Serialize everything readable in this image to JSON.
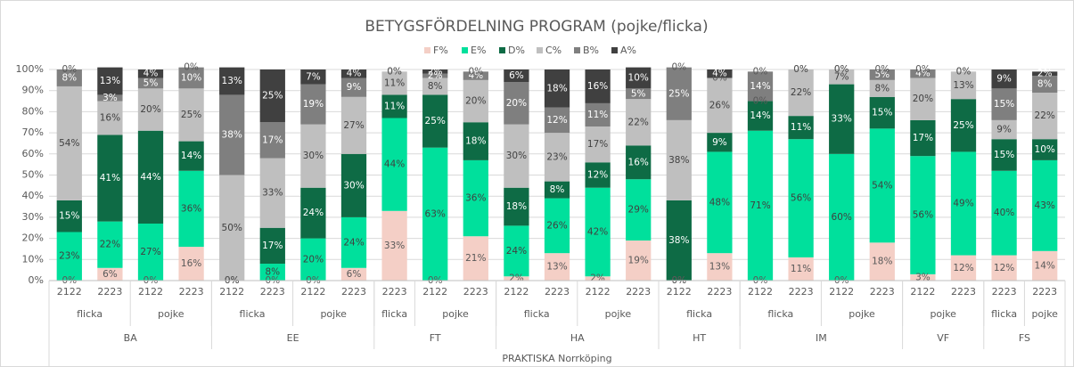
{
  "chart_data": {
    "type": "stacked_bar",
    "title": "BETYGSFÖRDELNING PROGRAM (pojke/flicka)",
    "top_category": "PRAKTISKA Norrköping",
    "groups": [
      {
        "name": "BA",
        "subgroups": [
          {
            "name": "flicka",
            "categories": [
              "2122",
              "2223"
            ]
          },
          {
            "name": "pojke",
            "categories": [
              "2122",
              "2223"
            ]
          }
        ]
      },
      {
        "name": "EE",
        "subgroups": [
          {
            "name": "flicka",
            "categories": [
              "2122",
              "2223"
            ]
          },
          {
            "name": "pojke",
            "categories": [
              "2122",
              "2223"
            ]
          }
        ]
      },
      {
        "name": "FT",
        "subgroups": [
          {
            "name": "flicka",
            "categories": [
              "2223"
            ]
          },
          {
            "name": "pojke",
            "categories": [
              "2122",
              "2223"
            ]
          }
        ]
      },
      {
        "name": "HA",
        "subgroups": [
          {
            "name": "flicka",
            "categories": [
              "2122",
              "2223"
            ]
          },
          {
            "name": "pojke",
            "categories": [
              "2122",
              "2223"
            ]
          }
        ]
      },
      {
        "name": "HT",
        "subgroups": [
          {
            "name": "flicka",
            "categories": [
              "2122",
              "2223"
            ]
          }
        ]
      },
      {
        "name": "IM",
        "subgroups": [
          {
            "name": "flicka",
            "categories": [
              "2122",
              "2223"
            ]
          },
          {
            "name": "pojke",
            "categories": [
              "2122",
              "2223"
            ]
          }
        ]
      },
      {
        "name": "VF",
        "subgroups": [
          {
            "name": "pojke",
            "categories": [
              "2122",
              "2223"
            ]
          }
        ]
      },
      {
        "name": "FS",
        "subgroups": [
          {
            "name": "flicka",
            "categories": [
              "2223"
            ]
          },
          {
            "name": "pojke",
            "categories": [
              "2223"
            ]
          }
        ]
      }
    ],
    "series": [
      {
        "name": "F%",
        "color": "#f4cfc6",
        "label_color": "#595959",
        "values": [
          0,
          6,
          0,
          16,
          0,
          0,
          0,
          6,
          33,
          0,
          21,
          2,
          13,
          2,
          19,
          0,
          13,
          0,
          11,
          0,
          18,
          3,
          12,
          12,
          14
        ],
        "value_labels": [
          "0%",
          "6%",
          "0%",
          "16%",
          "0%",
          "0%",
          "0%",
          "6%",
          "33%",
          "0%",
          "21%",
          "2%",
          "13%",
          "2%",
          "19%",
          "0%",
          "13%",
          "0%",
          "11%",
          "0%",
          "18%",
          "3%",
          "12%",
          "12%",
          "14%"
        ]
      },
      {
        "name": "E%",
        "color": "#00e09c",
        "label_color": "#404040",
        "values": [
          23,
          22,
          27,
          36,
          0,
          8,
          20,
          24,
          44,
          63,
          36,
          24,
          26,
          42,
          29,
          0,
          48,
          71,
          56,
          60,
          54,
          56,
          49,
          40,
          43
        ],
        "value_labels": [
          "23%",
          "22%",
          "27%",
          "36%",
          "0%",
          "8%",
          "20%",
          "24%",
          "44%",
          "63%",
          "36%",
          "24%",
          "26%",
          "42%",
          "29%",
          "0%",
          "48%",
          "71%",
          "56%",
          "60%",
          "54%",
          "56%",
          "49%",
          "40%",
          "43%"
        ]
      },
      {
        "name": "D%",
        "color": "#0e6b45",
        "label_color": "#ffffff",
        "values": [
          15,
          41,
          44,
          14,
          0,
          17,
          24,
          30,
          11,
          25,
          18,
          18,
          8,
          12,
          16,
          38,
          9,
          14,
          11,
          33,
          15,
          17,
          25,
          15,
          10
        ],
        "value_labels": [
          "15%",
          "41%",
          "44%",
          "14%",
          "0%",
          "17%",
          "24%",
          "30%",
          "11%",
          "25%",
          "18%",
          "18%",
          "8%",
          "12%",
          "16%",
          "38%",
          "9%",
          "14%",
          "11%",
          "33%",
          "15%",
          "17%",
          "25%",
          "15%",
          "10%"
        ]
      },
      {
        "name": "C%",
        "color": "#bfbfbf",
        "label_color": "#404040",
        "values": [
          54,
          16,
          20,
          25,
          50,
          33,
          30,
          27,
          11,
          8,
          20,
          30,
          23,
          17,
          22,
          38,
          26,
          0,
          22,
          7,
          8,
          20,
          13,
          9,
          22
        ],
        "value_labels": [
          "54%",
          "16%",
          "20%",
          "25%",
          "50%",
          "33%",
          "30%",
          "27%",
          "11%",
          "8%",
          "20%",
          "30%",
          "23%",
          "17%",
          "22%",
          "38%",
          "26%",
          "0%",
          "22%",
          "7%",
          "8%",
          "20%",
          "13%",
          "9%",
          "22%"
        ]
      },
      {
        "name": "B%",
        "color": "#7f7f7f",
        "label_color": "#ffffff",
        "values": [
          8,
          3,
          5,
          10,
          38,
          17,
          19,
          9,
          0,
          2,
          4,
          20,
          12,
          11,
          5,
          25,
          0,
          14,
          0,
          0,
          5,
          4,
          0,
          15,
          8
        ],
        "value_labels": [
          "8%",
          "3%",
          "5%",
          "10%",
          "38%",
          "17%",
          "19%",
          "9%",
          "0%",
          "2%",
          "4%",
          "20%",
          "12%",
          "11%",
          "5%",
          "25%",
          "0%",
          "14%",
          "0%",
          "0%",
          "5%",
          "4%",
          "0%",
          "15%",
          "8%"
        ]
      },
      {
        "name": "A%",
        "color": "#404040",
        "label_color": "#ffffff",
        "values": [
          0,
          13,
          4,
          0,
          13,
          25,
          7,
          4,
          0,
          2,
          0,
          6,
          18,
          16,
          10,
          0,
          4,
          0,
          0,
          0,
          0,
          0,
          0,
          9,
          2
        ],
        "value_labels": [
          "0%",
          "13%",
          "4%",
          "0%",
          "13%",
          "25%",
          "7%",
          "4%",
          "0%",
          "2%",
          "0%",
          "6%",
          "18%",
          "16%",
          "10%",
          "0%",
          "4%",
          "0%",
          "0%",
          "0%",
          "0%",
          "0%",
          "0%",
          "9%",
          "2%"
        ]
      }
    ],
    "ylim": [
      0,
      100
    ],
    "yticks": [
      {
        "value": 0,
        "label": "0%"
      },
      {
        "value": 10,
        "label": "10%"
      },
      {
        "value": 20,
        "label": "20%"
      },
      {
        "value": 30,
        "label": "30%"
      },
      {
        "value": 40,
        "label": "40%"
      },
      {
        "value": 50,
        "label": "50%"
      },
      {
        "value": 60,
        "label": "60%"
      },
      {
        "value": 70,
        "label": "70%"
      },
      {
        "value": 80,
        "label": "80%"
      },
      {
        "value": 90,
        "label": "90%"
      },
      {
        "value": 100,
        "label": "100%"
      }
    ],
    "grid": true,
    "legend": "top"
  }
}
